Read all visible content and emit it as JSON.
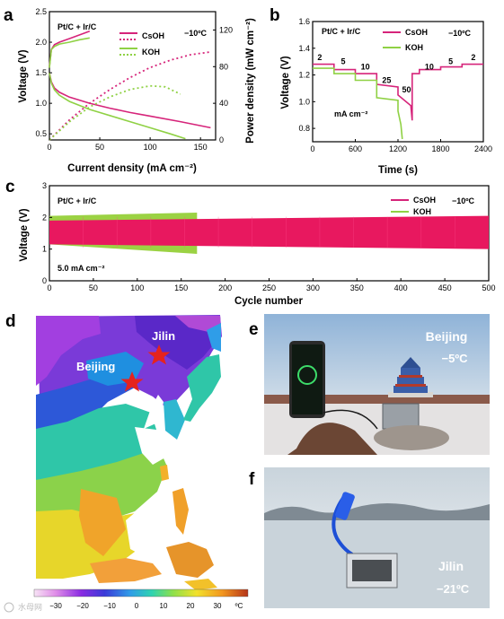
{
  "panels": {
    "a": "a",
    "b": "b",
    "c": "c",
    "d": "d",
    "e": "e",
    "f": "f"
  },
  "colors": {
    "csoh": "#d6247a",
    "koh": "#8fd144",
    "fill_csoh": "#e8185f",
    "fill_koh": "#9bd243",
    "star": "#e5231e"
  },
  "chart_data": [
    {
      "id": "a",
      "type": "line",
      "annotation": "Pt/C + Ir/C",
      "temperature": "−10ºC",
      "xlabel": "Current density (mA cm⁻²)",
      "ylabel": "Voltage (V)",
      "y2label": "Power density (mW cm⁻²)",
      "xlim": [
        0,
        165
      ],
      "ylim": [
        0.4,
        2.5
      ],
      "y2lim": [
        0,
        140
      ],
      "xticks": [
        0,
        50,
        100,
        150
      ],
      "yticks": [
        0.5,
        1.0,
        1.5,
        2.0,
        2.5
      ],
      "y2ticks": [
        0,
        40,
        80,
        120
      ],
      "legend": [
        "CsOH",
        "KOH"
      ],
      "legend_position": "top-right",
      "series": [
        {
          "name": "CsOH",
          "kind": "charge",
          "axis": "left",
          "style": "solid",
          "x": [
            0,
            2,
            5,
            10,
            20,
            30,
            40
          ],
          "y": [
            1.6,
            1.88,
            1.96,
            2.0,
            2.06,
            2.12,
            2.18
          ]
        },
        {
          "name": "CsOH",
          "kind": "discharge",
          "axis": "left",
          "style": "solid",
          "x": [
            0,
            2,
            5,
            10,
            20,
            40,
            60,
            80,
            100,
            130,
            160
          ],
          "y": [
            1.5,
            1.35,
            1.25,
            1.18,
            1.1,
            1.0,
            0.92,
            0.85,
            0.79,
            0.7,
            0.6
          ]
        },
        {
          "name": "CsOH",
          "kind": "power",
          "axis": "right",
          "style": "dotted",
          "x": [
            0,
            20,
            40,
            60,
            80,
            100,
            120,
            140,
            160
          ],
          "y": [
            0,
            22,
            40,
            55,
            68,
            79,
            87,
            93,
            96
          ]
        },
        {
          "name": "KOH",
          "kind": "charge",
          "axis": "left",
          "style": "solid",
          "x": [
            0,
            2,
            5,
            10,
            20,
            30,
            40
          ],
          "y": [
            1.58,
            1.88,
            1.93,
            1.97,
            2.0,
            2.04,
            2.07
          ]
        },
        {
          "name": "KOH",
          "kind": "discharge",
          "axis": "left",
          "style": "solid",
          "x": [
            0,
            2,
            5,
            10,
            20,
            40,
            60,
            80,
            100,
            120,
            135
          ],
          "y": [
            1.5,
            1.33,
            1.22,
            1.13,
            1.03,
            0.9,
            0.8,
            0.7,
            0.6,
            0.5,
            0.42
          ]
        },
        {
          "name": "KOH",
          "kind": "power",
          "axis": "right",
          "style": "dotted",
          "x": [
            0,
            20,
            40,
            60,
            80,
            100,
            115,
            130
          ],
          "y": [
            0,
            20,
            36,
            47,
            55,
            59,
            58,
            50
          ]
        }
      ]
    },
    {
      "id": "b",
      "type": "line",
      "annotation": "Pt/C + Ir/C",
      "temperature": "−10ºC",
      "xlabel": "Time (s)",
      "ylabel": "Voltage (V)",
      "unit_note": "mA cm⁻²",
      "xlim": [
        0,
        2400
      ],
      "ylim": [
        0.7,
        1.6
      ],
      "xticks": [
        0,
        600,
        1200,
        1800,
        2400
      ],
      "yticks": [
        0.8,
        1.0,
        1.2,
        1.4,
        1.6
      ],
      "legend": [
        "CsOH",
        "KOH"
      ],
      "legend_position": "top-right",
      "step_labels": [
        {
          "text": "2",
          "t": 100,
          "v": 1.31
        },
        {
          "text": "5",
          "t": 430,
          "v": 1.28
        },
        {
          "text": "10",
          "t": 740,
          "v": 1.24
        },
        {
          "text": "25",
          "t": 1040,
          "v": 1.14
        },
        {
          "text": "50",
          "t": 1320,
          "v": 1.07
        },
        {
          "text": "10",
          "t": 1640,
          "v": 1.24
        },
        {
          "text": "5",
          "t": 1940,
          "v": 1.28
        },
        {
          "text": "2",
          "t": 2260,
          "v": 1.31
        }
      ],
      "series": [
        {
          "name": "CsOH",
          "t": [
            0,
            300,
            300,
            600,
            600,
            900,
            900,
            1200,
            1200,
            1380,
            1400,
            1400,
            1500,
            1500,
            1800,
            1800,
            2100,
            2100,
            2400
          ],
          "v": [
            1.28,
            1.28,
            1.24,
            1.24,
            1.21,
            1.21,
            1.13,
            1.11,
            1.05,
            0.97,
            0.86,
            1.21,
            1.21,
            1.24,
            1.24,
            1.26,
            1.26,
            1.28,
            1.28
          ]
        },
        {
          "name": "KOH",
          "t": [
            0,
            300,
            300,
            600,
            600,
            900,
            900,
            1200,
            1200,
            1240,
            1260
          ],
          "v": [
            1.25,
            1.25,
            1.21,
            1.21,
            1.16,
            1.16,
            1.03,
            1.01,
            0.93,
            0.83,
            0.72
          ]
        }
      ]
    },
    {
      "id": "c",
      "type": "area",
      "annotation": "Pt/C + Ir/C",
      "temperature": "−10ºC",
      "rate": "5.0 mA cm⁻²",
      "xlabel": "Cycle number",
      "ylabel": "Voltage (V)",
      "xlim": [
        0,
        500
      ],
      "ylim": [
        0,
        3
      ],
      "xticks": [
        0,
        50,
        100,
        150,
        200,
        250,
        300,
        350,
        400,
        450,
        500
      ],
      "yticks": [
        0,
        1,
        2,
        3
      ],
      "legend": [
        "CsOH",
        "KOH"
      ],
      "legend_position": "top-right",
      "series": [
        {
          "name": "KOH",
          "x_end": 168,
          "upper": [
            2.05,
            2.15
          ],
          "lower": [
            1.15,
            0.85
          ]
        },
        {
          "name": "CsOH",
          "x_end": 500,
          "upper": [
            1.9,
            2.05
          ],
          "lower": [
            1.15,
            1.0
          ]
        }
      ]
    }
  ],
  "map": {
    "cities": [
      {
        "name": "Jilin",
        "lon": 126.5,
        "lat": 43.8
      },
      {
        "name": "Beijing",
        "lon": 116.4,
        "lat": 39.9
      }
    ],
    "colorbar_ticks": [
      "−30",
      "−20",
      "−10",
      "0",
      "10",
      "20",
      "30"
    ],
    "colorbar_unit": "ºC",
    "watermark": "水母网"
  },
  "photos": {
    "e": {
      "place": "Beijing",
      "temp": "−5ºC"
    },
    "f": {
      "place": "Jilin",
      "temp": "−21ºC"
    }
  }
}
